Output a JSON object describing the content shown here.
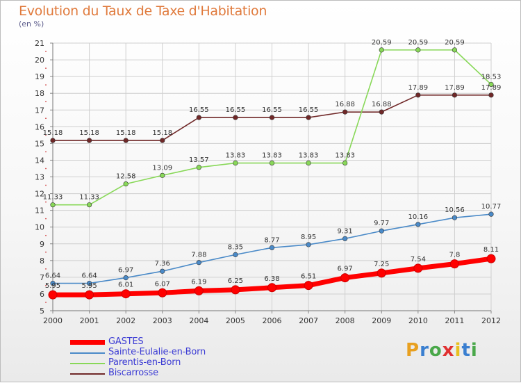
{
  "header": {
    "title": "Evolution du Taux de Taxe d'Habitation",
    "unit": "(en %)"
  },
  "logo": {
    "text": "Proxiti",
    "letter_colors": [
      "#e8a020",
      "#3a7fd0",
      "#4aa84a",
      "#e03030",
      "#e8c020",
      "#3a7fd0",
      "#4aa84a"
    ]
  },
  "chart_data": {
    "type": "line",
    "x": [
      2000,
      2001,
      2002,
      2003,
      2004,
      2005,
      2006,
      2007,
      2008,
      2009,
      2010,
      2011,
      2012
    ],
    "ylim": [
      5,
      21
    ],
    "yticks": [
      5,
      6,
      7,
      8,
      9,
      10,
      11,
      12,
      13,
      14,
      15,
      16,
      17,
      18,
      19,
      20,
      21
    ],
    "grid": true,
    "legend_position": "bottom-left",
    "series": [
      {
        "name": "GASTES",
        "color": "#ff0000",
        "values": [
          5.95,
          5.95,
          6.01,
          6.07,
          6.19,
          6.25,
          6.38,
          6.51,
          6.97,
          7.25,
          7.54,
          7.8,
          8.11
        ],
        "labels": [
          "5.95",
          "5.95",
          "6.01",
          "6.07",
          "6.19",
          "6.25",
          "6.38",
          "6.51",
          "6.97",
          "7.25",
          "7.54",
          "7.8",
          "8.11"
        ]
      },
      {
        "name": "Sainte-Eulalie-en-Born",
        "color": "#4a8ac8",
        "values": [
          6.64,
          6.64,
          6.97,
          7.36,
          7.88,
          8.35,
          8.77,
          8.95,
          9.31,
          9.77,
          10.16,
          10.56,
          10.77
        ],
        "labels": [
          "6.64",
          "6.64",
          "6.97",
          "7.36",
          "7.88",
          "8.35",
          "8.77",
          "8.95",
          "9.31",
          "9.77",
          "10.16",
          "10.56",
          "10.77"
        ]
      },
      {
        "name": "Parentis-en-Born",
        "color": "#88d858",
        "values": [
          11.33,
          11.33,
          12.58,
          13.09,
          13.57,
          13.83,
          13.83,
          13.83,
          13.83,
          20.59,
          20.59,
          20.59,
          18.53
        ],
        "labels": [
          "11.33",
          "11.33",
          "12.58",
          "13.09",
          "13.57",
          "13.83",
          "13.83",
          "13.83",
          "13.83",
          "20.59",
          "20.59",
          "20.59",
          "18.53"
        ]
      },
      {
        "name": "Biscarrosse",
        "color": "#702828",
        "values": [
          15.18,
          15.18,
          15.18,
          15.18,
          16.55,
          16.55,
          16.55,
          16.55,
          16.88,
          16.88,
          17.89,
          17.89,
          17.89
        ],
        "labels": [
          "15.18",
          "15.18",
          "15.18",
          "15.18",
          "16.55",
          "16.55",
          "16.55",
          "16.55",
          "16.88",
          "16.88",
          "17.89",
          "17.89",
          "17.89"
        ]
      }
    ]
  }
}
